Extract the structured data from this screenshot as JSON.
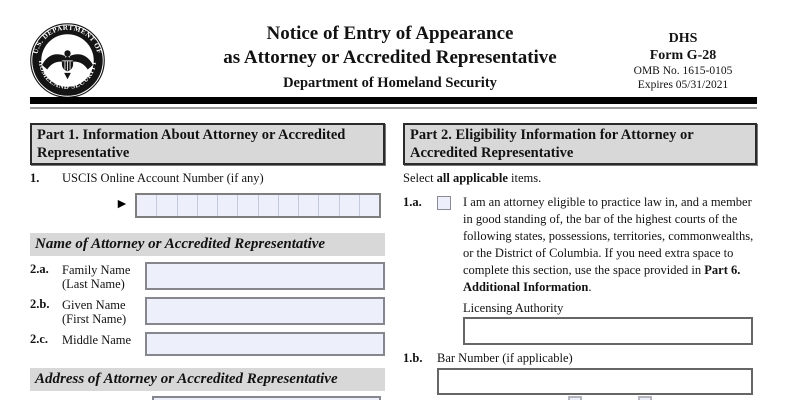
{
  "header": {
    "seal_text_top": "U.S. DEPARTMENT OF",
    "seal_text_bottom": "HOMELAND SECURITY",
    "title_line1": "Notice of Entry of Appearance",
    "title_line2": "as Attorney or Accredited Representative",
    "subtitle": "Department of Homeland Security",
    "agency": "DHS",
    "form_number": "Form G-28",
    "omb": "OMB No. 1615-0105",
    "expires": "Expires 05/31/2021"
  },
  "part1": {
    "title": "Part 1.  Information About Attorney or Accredited Representative",
    "item1": {
      "number": "1.",
      "label": "USCIS Online Account Number (if any)",
      "pointer_icon": "►",
      "cells": 12,
      "value": ""
    },
    "name_section": {
      "title": "Name of Attorney or Accredited Representative",
      "fields": [
        {
          "number": "2.a.",
          "label_line1": "Family Name",
          "label_line2": "(Last Name)",
          "value": ""
        },
        {
          "number": "2.b.",
          "label_line1": "Given Name",
          "label_line2": "(First Name)",
          "value": ""
        },
        {
          "number": "2.c.",
          "label_line1": "Middle Name",
          "label_line2": "",
          "value": ""
        }
      ]
    },
    "address_section": {
      "title": "Address of Attorney or Accredited Representative"
    }
  },
  "part2": {
    "title": "Part 2.  Eligibility Information for Attorney or Accredited Representative",
    "instruction_prefix": "Select ",
    "instruction_bold": "all applicable",
    "instruction_suffix": " items.",
    "item1a": {
      "number": "1.a.",
      "checked": false,
      "text_before": "I am an attorney eligible to practice law in, and a member in good standing of, the bar of the highest courts of the following states, possessions, territories, commonwealths, or the District of Columbia.  If you need extra space to complete this section, use the space provided in ",
      "text_bold": "Part 6. Additional Information",
      "text_after": ".",
      "licensing_label": "Licensing Authority",
      "licensing_value": ""
    },
    "item1b": {
      "number": "1.b.",
      "label": "Bar Number (if applicable)",
      "value": ""
    }
  },
  "colors": {
    "part-header-bg": "#d8d8d8",
    "strip-bg": "#d8d8d8",
    "input-fill": "#edf0fb",
    "input-border": "#86868f",
    "white-input-border": "#666666",
    "ink": "#121212",
    "bar-black": "#000000",
    "divider-gray": "#9a9a9a",
    "cell-sep": "#c4cade"
  }
}
